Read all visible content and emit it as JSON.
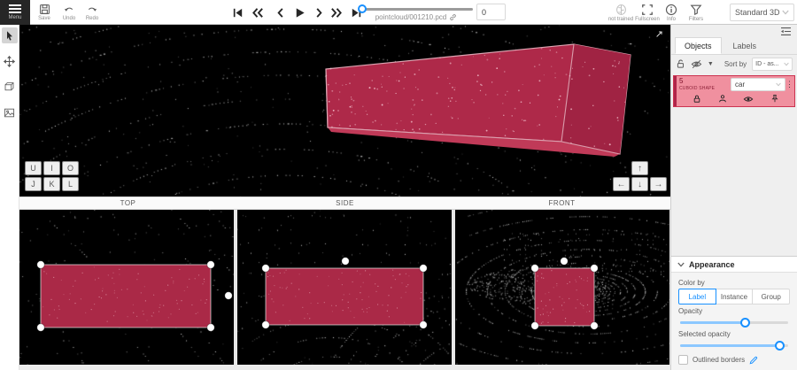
{
  "topbar": {
    "menu_label": "Menu",
    "save_label": "Save",
    "undo_label": "Undo",
    "redo_label": "Redo",
    "filename": "pointcloud/001210.pcd",
    "frame_value": "0",
    "ai_status_label": "not trained",
    "fullscreen_label": "Fullscreen",
    "info_label": "Info",
    "filters_label": "Filters",
    "workspace": "Standard 3D"
  },
  "perspective": {
    "camera_keys_top": [
      "U",
      "I",
      "O"
    ],
    "camera_keys_bottom": [
      "J",
      "K",
      "L"
    ],
    "arrow_up": "↑",
    "arrow_left": "←",
    "arrow_down": "↓",
    "arrow_right": "→",
    "expand_glyph": "↗"
  },
  "views": {
    "top_label": "TOP",
    "side_label": "SIDE",
    "front_label": "FRONT"
  },
  "objects_panel": {
    "tab_objects": "Objects",
    "tab_labels": "Labels",
    "sort_by_label": "Sort by",
    "sort_value": "ID - as...",
    "menu_glyph": "⋮",
    "caret_glyph": "▼",
    "object": {
      "id": "5",
      "shape_type": "CUBOID SHAPE",
      "label": "car"
    }
  },
  "appearance": {
    "title": "Appearance",
    "color_by_label": "Color by",
    "options": [
      {
        "label": "Label"
      },
      {
        "label": "Instance"
      },
      {
        "label": "Group"
      }
    ],
    "selected_option": "Label",
    "opacity_label": "Opacity",
    "opacity_percent": 60,
    "selected_opacity_label": "Selected opacity",
    "selected_opacity_percent": 92,
    "outlined_borders_label": "Outlined borders"
  },
  "colors": {
    "accent": "#1890ff",
    "annotation_fill": "#ae2949",
    "annotation_edge": "#dca3b1",
    "selected_item_bg": "#f0909f"
  }
}
